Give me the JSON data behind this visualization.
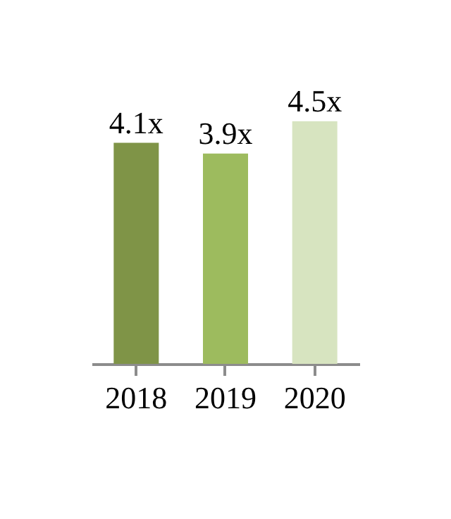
{
  "chart_data": {
    "type": "bar",
    "categories": [
      "2018",
      "2019",
      "2020"
    ],
    "values": [
      4.1,
      3.9,
      4.5
    ],
    "colors": [
      "#7f9447",
      "#9dbb5e",
      "#d7e4c0"
    ],
    "value_labels": [
      "4.1x",
      "3.9x",
      "4.5x"
    ],
    "grid": false
  }
}
